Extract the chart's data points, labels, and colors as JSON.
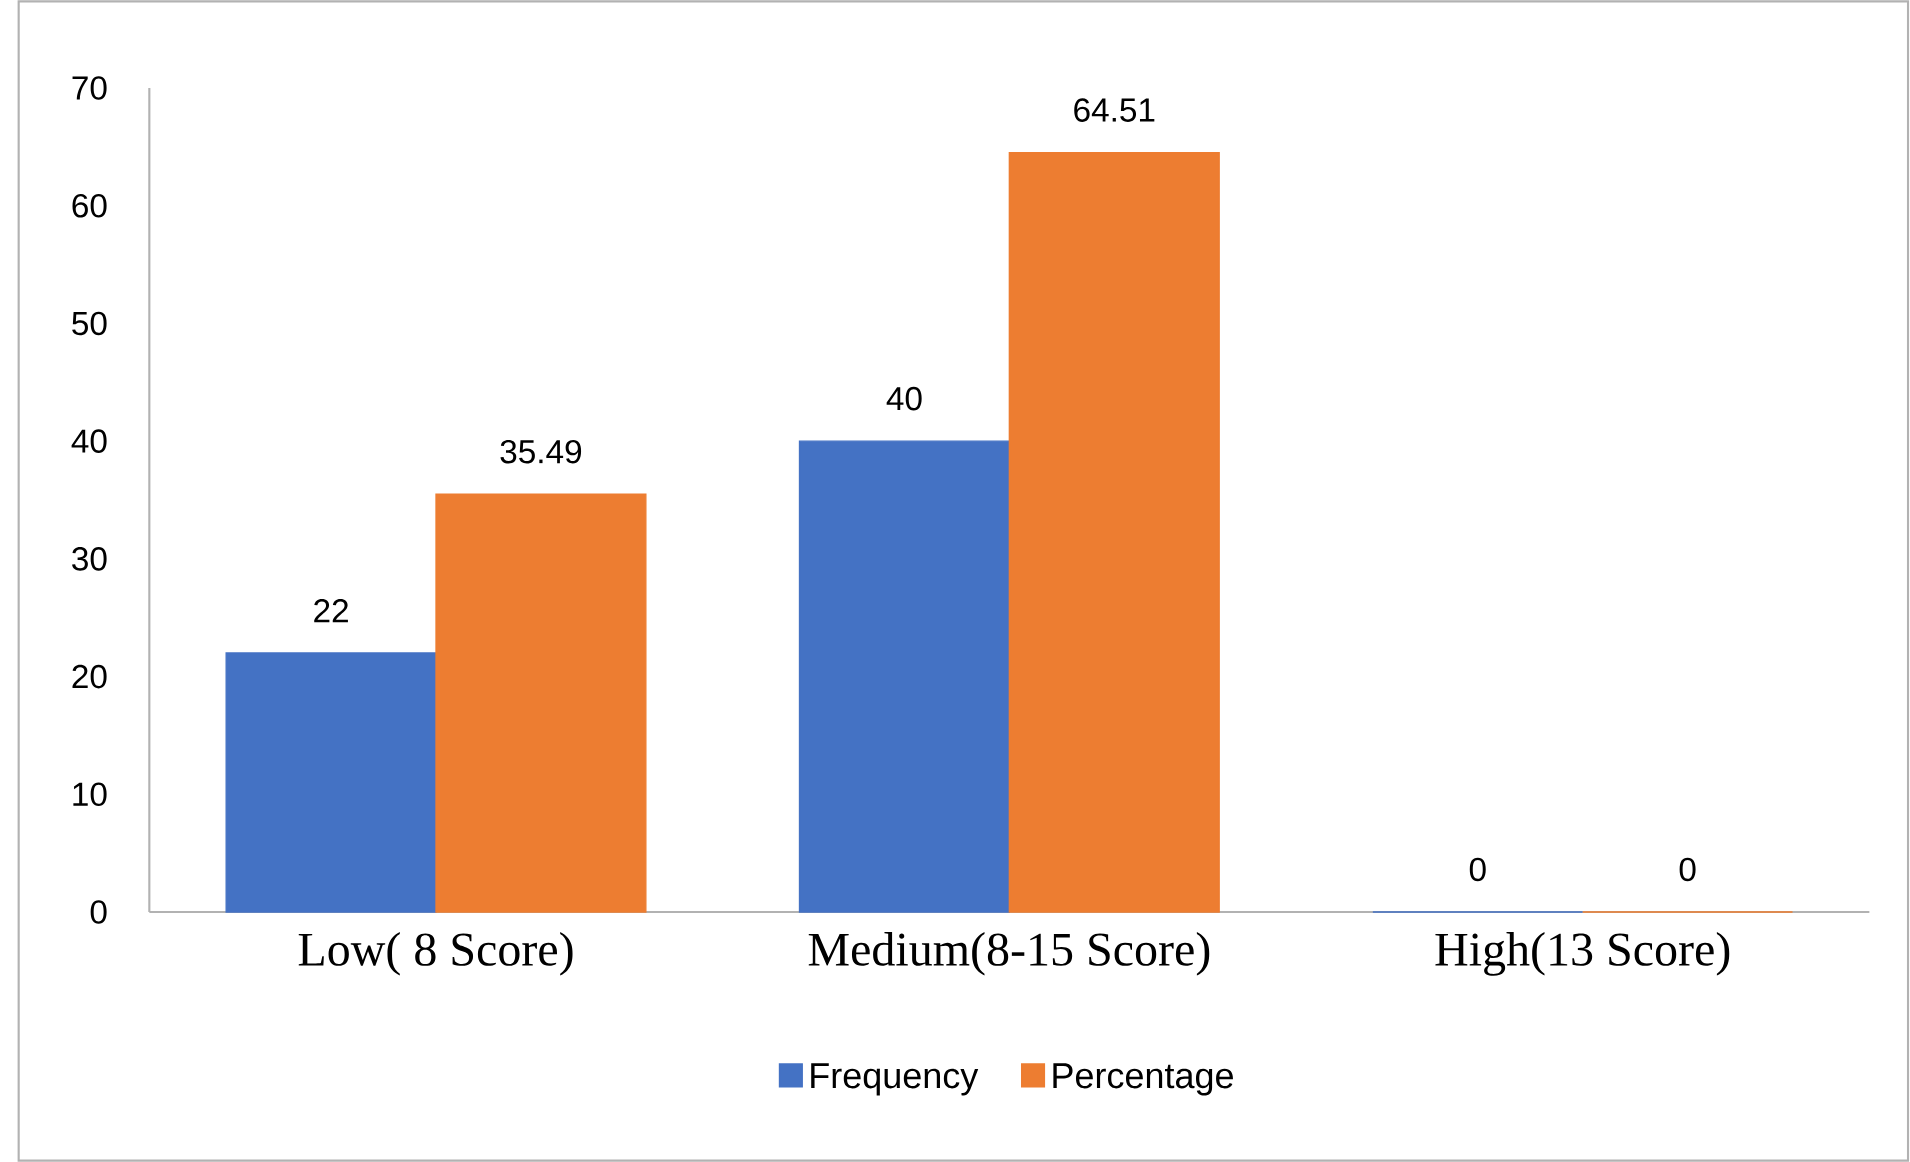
{
  "chart_data": {
    "type": "bar",
    "categories": [
      "Low( 8 Score)",
      "Medium(8-15 Score)",
      "High(13 Score)"
    ],
    "series": [
      {
        "name": "Frequency",
        "color": "#4472c4",
        "values": [
          22,
          40,
          0
        ]
      },
      {
        "name": "Percentage",
        "color": "#ed7d31",
        "values": [
          35.49,
          64.51,
          0
        ]
      }
    ],
    "ylim": [
      0,
      70
    ],
    "yticks": [
      0,
      10,
      20,
      30,
      40,
      50,
      60,
      70
    ],
    "grid": false,
    "legend": "bottom",
    "data_labels": true
  }
}
